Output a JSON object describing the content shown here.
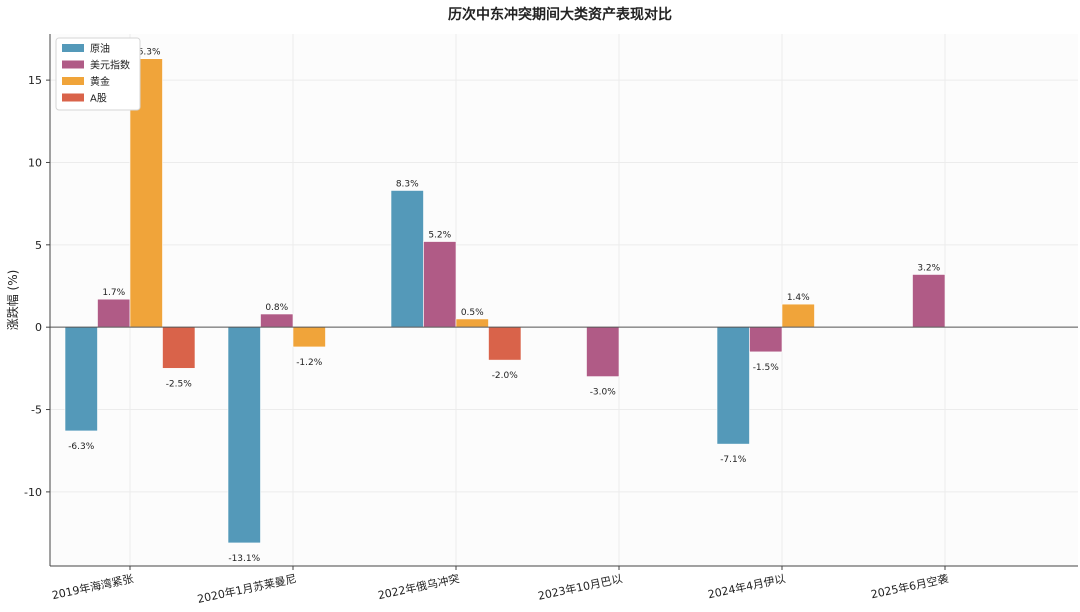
{
  "chart_data": {
    "type": "bar",
    "title": "历次中东冲突期间大类资产表现对比",
    "xlabel": "",
    "ylabel": "涨跌幅 (%)",
    "ylim": [
      -14.5,
      17.8
    ],
    "yticks": [
      -10,
      -5,
      0,
      5,
      10,
      15
    ],
    "categories": [
      "2019年海湾紧张",
      "2020年1月苏莱曼尼",
      "2022年俄乌冲突",
      "2023年10月巴以",
      "2024年4月伊以",
      "2025年6月空袭"
    ],
    "legend_position": "top-left",
    "grid": true,
    "series": [
      {
        "name": "原油",
        "color": "#5499B9",
        "values": [
          -6.3,
          -13.1,
          8.3,
          null,
          -7.1,
          null
        ],
        "labels": [
          "-6.3%",
          "-13.1%",
          "8.3%",
          "",
          "-7.1%",
          ""
        ]
      },
      {
        "name": "美元指数",
        "color": "#B05B86",
        "values": [
          1.7,
          0.8,
          5.2,
          -3.0,
          -1.5,
          3.2
        ],
        "labels": [
          "1.7%",
          "0.8%",
          "5.2%",
          "-3.0%",
          "-1.5%",
          "3.2%"
        ]
      },
      {
        "name": "黄金",
        "color": "#F0A43A",
        "values": [
          16.3,
          -1.2,
          0.5,
          null,
          1.4,
          null
        ],
        "labels": [
          "16.3%",
          "-1.2%",
          "0.5%",
          "",
          "1.4%",
          ""
        ]
      },
      {
        "name": "A股",
        "color": "#D9634A",
        "values": [
          -2.5,
          null,
          -2.0,
          null,
          null,
          null
        ],
        "labels": [
          "-2.5%",
          "",
          "-2.0%",
          "",
          "",
          ""
        ]
      }
    ]
  }
}
